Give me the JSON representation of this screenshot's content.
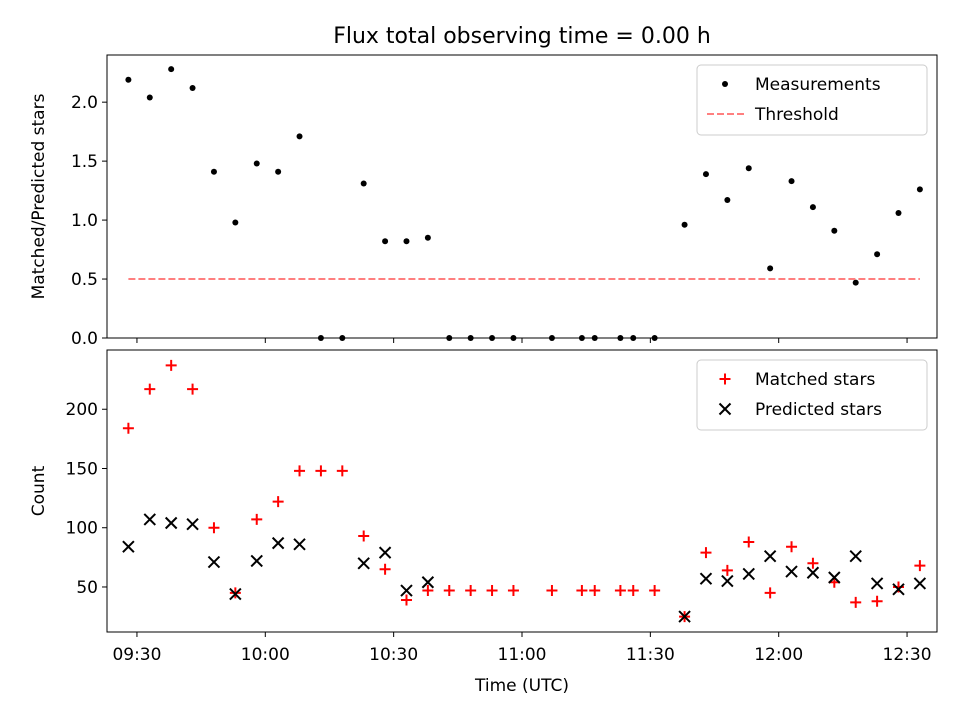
{
  "chart_data": [
    {
      "type": "scatter",
      "title": "Flux total observing time = 0.00 h",
      "ylabel": "Matched/Predicted stars",
      "xlabel": "",
      "xlim": [
        "09:23",
        "12:37"
      ],
      "ylim": [
        0,
        2.4
      ],
      "grid": false,
      "legend": "top-right",
      "x_ticks": [
        "09:30",
        "10:00",
        "10:30",
        "11:00",
        "11:30",
        "12:00",
        "12:30"
      ],
      "y_ticks": [
        "0.0",
        "0.5",
        "1.0",
        "1.5",
        "2.0"
      ],
      "series": [
        {
          "name": "Measurements",
          "marker": "dot",
          "color": "#000000",
          "x": [
            "09:28",
            "09:33",
            "09:38",
            "09:43",
            "09:48",
            "09:53",
            "09:58",
            "10:03",
            "10:08",
            "10:13",
            "10:18",
            "10:23",
            "10:28",
            "10:33",
            "10:38",
            "10:43",
            "10:48",
            "10:53",
            "10:58",
            "11:07",
            "11:14",
            "11:17",
            "11:23",
            "11:26",
            "11:31",
            "11:38",
            "11:43",
            "11:48",
            "11:53",
            "11:58",
            "12:03",
            "12:08",
            "12:13",
            "12:18",
            "12:23",
            "12:28",
            "12:33"
          ],
          "y": [
            2.19,
            2.04,
            2.28,
            2.12,
            1.41,
            0.98,
            1.48,
            1.41,
            1.71,
            0.0,
            0.0,
            1.31,
            0.82,
            0.82,
            0.85,
            0.0,
            0.0,
            0.0,
            0.0,
            0.0,
            0.0,
            0.0,
            0.0,
            0.0,
            0.0,
            0.96,
            1.39,
            1.17,
            1.44,
            0.59,
            1.33,
            1.11,
            0.91,
            0.47,
            0.71,
            1.06,
            1.26
          ]
        },
        {
          "name": "Threshold",
          "style": "dashed",
          "color": "#ff7f7f",
          "x": [
            "09:28",
            "12:33"
          ],
          "y": [
            0.5,
            0.5
          ]
        }
      ]
    },
    {
      "type": "scatter",
      "title": "",
      "ylabel": "Count",
      "xlabel": "Time (UTC)",
      "xlim": [
        "09:23",
        "12:37"
      ],
      "ylim": [
        12,
        250
      ],
      "grid": false,
      "legend": "top-right",
      "x_ticks": [
        "09:30",
        "10:00",
        "10:30",
        "11:00",
        "11:30",
        "12:00",
        "12:30"
      ],
      "y_ticks": [
        "50",
        "100",
        "150",
        "200"
      ],
      "series": [
        {
          "name": "Matched stars",
          "marker": "plus",
          "color": "#ff0000",
          "x": [
            "09:28",
            "09:33",
            "09:38",
            "09:43",
            "09:48",
            "09:53",
            "09:58",
            "10:03",
            "10:08",
            "10:13",
            "10:18",
            "10:23",
            "10:28",
            "10:33",
            "10:38",
            "10:43",
            "10:48",
            "10:53",
            "10:58",
            "11:07",
            "11:14",
            "11:17",
            "11:23",
            "11:26",
            "11:31",
            "11:38",
            "11:43",
            "11:48",
            "11:53",
            "11:58",
            "12:03",
            "12:08",
            "12:13",
            "12:18",
            "12:23",
            "12:28",
            "12:33"
          ],
          "y": [
            184,
            217,
            237,
            217,
            100,
            45,
            107,
            122,
            148,
            148,
            148,
            93,
            65,
            39,
            47,
            47,
            47,
            47,
            47,
            47,
            47,
            47,
            47,
            47,
            47,
            25,
            79,
            64,
            88,
            45,
            84,
            70,
            54,
            37,
            38,
            50,
            68
          ]
        },
        {
          "name": "Predicted stars",
          "marker": "x",
          "color": "#000000",
          "x": [
            "09:28",
            "09:33",
            "09:38",
            "09:43",
            "09:48",
            "09:53",
            "09:58",
            "10:03",
            "10:08",
            "10:23",
            "10:28",
            "10:33",
            "10:38",
            "11:38",
            "11:43",
            "11:48",
            "11:53",
            "11:58",
            "12:03",
            "12:08",
            "12:13",
            "12:18",
            "12:23",
            "12:28",
            "12:33"
          ],
          "y": [
            84,
            107,
            104,
            103,
            71,
            44,
            72,
            87,
            86,
            70,
            79,
            47,
            54,
            25,
            57,
            55,
            61,
            76,
            63,
            62,
            58,
            76,
            53,
            48,
            53
          ]
        }
      ]
    }
  ]
}
